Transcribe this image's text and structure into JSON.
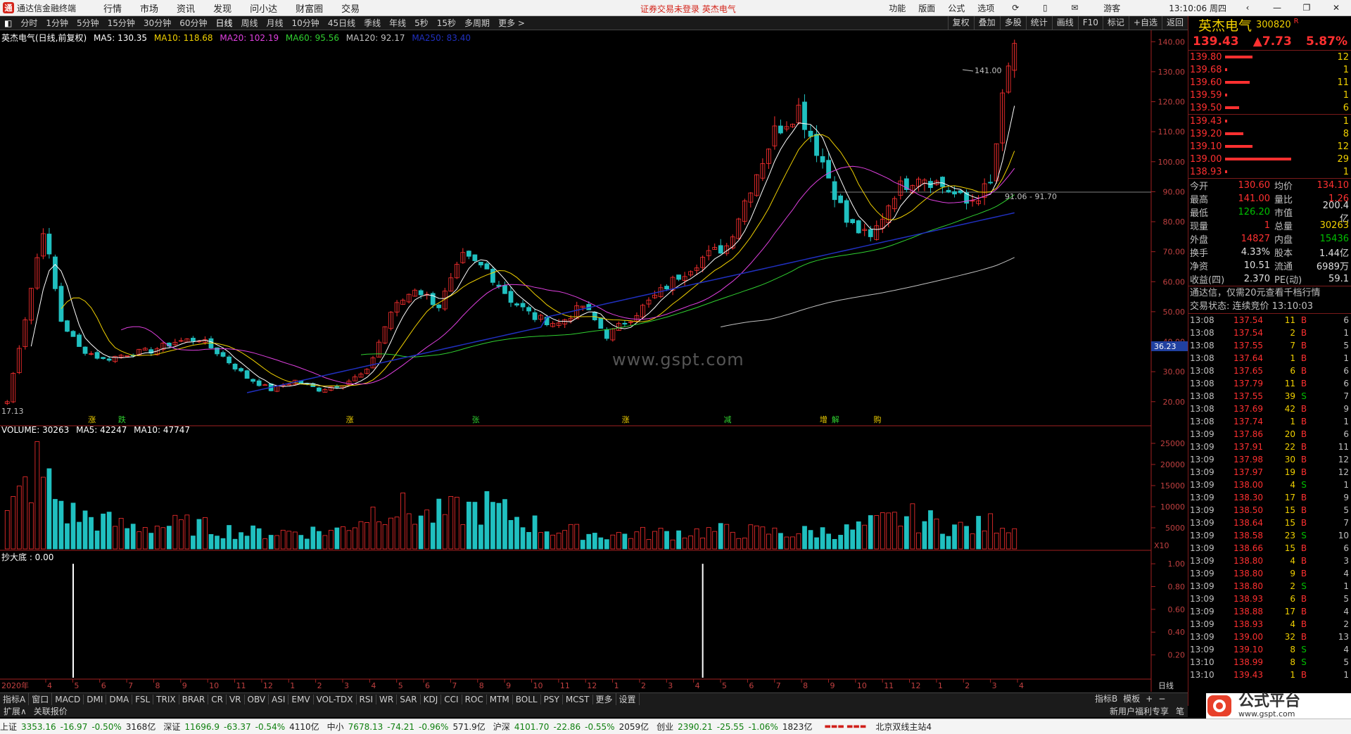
{
  "app": {
    "name": "通达信金融终端",
    "warning": "证券交易未登录  英杰电气"
  },
  "menu": [
    "行情",
    "市场",
    "资讯",
    "发现",
    "问小达",
    "财富圈",
    "交易"
  ],
  "window_right": [
    "功能",
    "版面",
    "公式",
    "选项",
    "游客",
    "13:10:06 周四"
  ],
  "toolbar": [
    "分时",
    "1分钟",
    "5分钟",
    "15分钟",
    "30分钟",
    "60分钟",
    "日线",
    "周线",
    "月线",
    "10分钟",
    "45日线",
    "季线",
    "年线",
    "5秒",
    "15秒",
    "多周期",
    "更多 >"
  ],
  "toolbar_right": [
    "复权",
    "叠加",
    "多股",
    "统计",
    "画线",
    "F10",
    "标记",
    "+自选",
    "返回"
  ],
  "main_legend": {
    "title": "英杰电气(日线,前复权)",
    "ma5": "MA5: 130.35",
    "ma10": "MA10: 118.68",
    "ma20": "MA20: 102.19",
    "ma60": "MA60: 95.56",
    "ma120": "MA120: 92.17",
    "ma250": "MA250: 83.40"
  },
  "volume_legend": {
    "title": "VOLUME: 30263",
    "ma5": "MA5: 42247",
    "ma10": "MA10: 47747"
  },
  "ind_legend": {
    "title": "抄大底 : 0.00"
  },
  "chart_data": [
    {
      "type": "candlestick",
      "title": "英杰电气(日线,前复权)",
      "ylim": [
        17.13,
        141.0
      ],
      "yticks": [
        20,
        30,
        40,
        50,
        60,
        70,
        80,
        90,
        100,
        110,
        120,
        130,
        140
      ],
      "high_label": "141.00",
      "low_label": "17.13",
      "range_label": "91.06 - 91.70",
      "cursor_price": "36.23",
      "annotations": [
        "涨",
        "跌",
        "涨",
        "张",
        "涨",
        "减",
        "增",
        "解",
        "购"
      ],
      "close_path": [
        [
          0,
          20
        ],
        [
          3,
          48
        ],
        [
          6,
          78
        ],
        [
          9,
          47
        ],
        [
          12,
          38
        ],
        [
          16,
          34
        ],
        [
          20,
          36
        ],
        [
          24,
          37
        ],
        [
          28,
          40
        ],
        [
          32,
          41
        ],
        [
          36,
          35
        ],
        [
          40,
          28
        ],
        [
          44,
          24
        ],
        [
          48,
          27
        ],
        [
          52,
          24
        ],
        [
          56,
          26
        ],
        [
          60,
          30
        ],
        [
          64,
          50
        ],
        [
          68,
          58
        ],
        [
          72,
          52
        ],
        [
          76,
          68
        ],
        [
          80,
          64
        ],
        [
          84,
          54
        ],
        [
          88,
          48
        ],
        [
          92,
          46
        ],
        [
          96,
          52
        ],
        [
          100,
          42
        ],
        [
          104,
          48
        ],
        [
          108,
          55
        ],
        [
          112,
          62
        ],
        [
          116,
          68
        ],
        [
          120,
          72
        ],
        [
          124,
          92
        ],
        [
          128,
          110
        ],
        [
          132,
          118
        ],
        [
          136,
          100
        ],
        [
          140,
          80
        ],
        [
          144,
          74
        ],
        [
          148,
          90
        ],
        [
          152,
          96
        ],
        [
          156,
          92
        ],
        [
          160,
          86
        ],
        [
          164,
          92
        ],
        [
          166,
          120
        ],
        [
          168,
          141
        ]
      ]
    },
    {
      "type": "bar",
      "title": "VOLUME",
      "ylim": [
        0,
        27000
      ],
      "yticks": [
        5000,
        10000,
        15000,
        20000,
        25000
      ],
      "unit_label": "X10",
      "profile": [
        [
          0,
          8000
        ],
        [
          5,
          20000
        ],
        [
          10,
          9000
        ],
        [
          20,
          5500
        ],
        [
          30,
          6000
        ],
        [
          40,
          4000
        ],
        [
          55,
          4500
        ],
        [
          63,
          11000
        ],
        [
          70,
          8000
        ],
        [
          80,
          10500
        ],
        [
          90,
          5000
        ],
        [
          100,
          3500
        ],
        [
          110,
          4000
        ],
        [
          120,
          4500
        ],
        [
          130,
          4000
        ],
        [
          140,
          4500
        ],
        [
          150,
          8000
        ],
        [
          160,
          5000
        ],
        [
          166,
          7000
        ],
        [
          168,
          5000
        ]
      ],
      "last_value": 30263
    },
    {
      "type": "bar",
      "title": "抄大底",
      "ylim": [
        0,
        1.05
      ],
      "yticks": [
        0.2,
        0.4,
        0.6,
        0.8,
        1.0
      ],
      "signals": [
        11,
        116
      ],
      "last_value": 0.0
    }
  ],
  "x_axis": {
    "year_label": "2020年",
    "months": [
      "4",
      "5",
      "6",
      "7",
      "8",
      "9",
      "10",
      "11",
      "12",
      "1",
      "2",
      "3",
      "4",
      "5",
      "6",
      "7",
      "8",
      "9",
      "10",
      "11",
      "12",
      "1",
      "2",
      "3",
      "4",
      "5",
      "6",
      "7",
      "8",
      "9",
      "10",
      "11",
      "12",
      "1",
      "2",
      "3",
      "4"
    ],
    "period": "日线"
  },
  "indicators": [
    "指标A",
    "窗口",
    "MACD",
    "DMI",
    "DMA",
    "FSL",
    "TRIX",
    "BRAR",
    "CR",
    "VR",
    "OBV",
    "ASI",
    "EMV",
    "VOL-TDX",
    "RSI",
    "WR",
    "SAR",
    "KDJ",
    "CCI",
    "ROC",
    "MTM",
    "BOLL",
    "PSY",
    "MCST",
    "更多",
    "设置"
  ],
  "indicators_right": [
    "指标B",
    "模板",
    "+",
    "−"
  ],
  "ext": [
    "扩展∧",
    "关联报价"
  ],
  "ext_right": [
    "新用户福利专享",
    "笔"
  ],
  "stock": {
    "name": "英杰电气",
    "code": "300820",
    "tag": "R",
    "price": "139.43",
    "change": "▲7.73",
    "pct": "5.87%"
  },
  "asks": [
    {
      "price": "139.80",
      "vol": "12",
      "bar": 0.35
    },
    {
      "price": "139.68",
      "vol": "1",
      "bar": 0.03
    },
    {
      "price": "139.60",
      "vol": "11",
      "bar": 0.32
    },
    {
      "price": "139.59",
      "vol": "1",
      "bar": 0.03
    },
    {
      "price": "139.50",
      "vol": "6",
      "bar": 0.18
    }
  ],
  "bids": [
    {
      "price": "139.43",
      "vol": "1",
      "bar": 0.03
    },
    {
      "price": "139.20",
      "vol": "8",
      "bar": 0.24
    },
    {
      "price": "139.10",
      "vol": "12",
      "bar": 0.35
    },
    {
      "price": "139.00",
      "vol": "29",
      "bar": 0.85
    },
    {
      "price": "138.93",
      "vol": "1",
      "bar": 0.03
    }
  ],
  "quote": [
    {
      "k": "今开",
      "v": "130.60",
      "vc": "red",
      "k2": "均价",
      "v2": "134.10",
      "v2c": "red"
    },
    {
      "k": "最高",
      "v": "141.00",
      "vc": "red",
      "k2": "量比",
      "v2": "1.26",
      "v2c": "red"
    },
    {
      "k": "最低",
      "v": "126.20",
      "vc": "green",
      "k2": "市值",
      "v2": "200.4亿",
      "v2c": "white"
    },
    {
      "k": "现量",
      "v": "1",
      "vc": "red",
      "k2": "总量",
      "v2": "30263",
      "v2c": "yellow"
    },
    {
      "k": "外盘",
      "v": "14827",
      "vc": "red",
      "k2": "内盘",
      "v2": "15436",
      "v2c": "green"
    },
    {
      "k": "换手",
      "v": "4.33%",
      "vc": "white",
      "k2": "股本",
      "v2": "1.44亿",
      "v2c": "white"
    },
    {
      "k": "净资",
      "v": "10.51",
      "vc": "white",
      "k2": "流通",
      "v2": "6989万",
      "v2c": "white"
    },
    {
      "k": "收益(四)",
      "v": "2.370",
      "vc": "white",
      "k2": "PE(动)",
      "v2": "59.1",
      "v2c": "white"
    }
  ],
  "notice": "通达信，仅需20元查看千档行情",
  "trade_status": "交易状态: 连续竞价 13:10:03",
  "ticks": [
    [
      "13:08",
      "137.54",
      "11",
      "B",
      "6"
    ],
    [
      "13:08",
      "137.54",
      "2",
      "B",
      "1"
    ],
    [
      "13:08",
      "137.55",
      "7",
      "B",
      "5"
    ],
    [
      "13:08",
      "137.64",
      "1",
      "B",
      "1"
    ],
    [
      "13:08",
      "137.65",
      "6",
      "B",
      "6"
    ],
    [
      "13:08",
      "137.79",
      "11",
      "B",
      "6"
    ],
    [
      "13:08",
      "137.55",
      "39",
      "S",
      "7"
    ],
    [
      "13:08",
      "137.69",
      "42",
      "B",
      "9"
    ],
    [
      "13:08",
      "137.74",
      "1",
      "B",
      "1"
    ],
    [
      "13:09",
      "137.86",
      "20",
      "B",
      "6"
    ],
    [
      "13:09",
      "137.91",
      "22",
      "B",
      "11"
    ],
    [
      "13:09",
      "137.98",
      "30",
      "B",
      "12"
    ],
    [
      "13:09",
      "137.97",
      "19",
      "B",
      "12"
    ],
    [
      "13:09",
      "138.00",
      "4",
      "S",
      "1"
    ],
    [
      "13:09",
      "138.30",
      "17",
      "B",
      "9"
    ],
    [
      "13:09",
      "138.50",
      "15",
      "B",
      "5"
    ],
    [
      "13:09",
      "138.64",
      "15",
      "B",
      "7"
    ],
    [
      "13:09",
      "138.58",
      "23",
      "S",
      "10"
    ],
    [
      "13:09",
      "138.66",
      "15",
      "B",
      "6"
    ],
    [
      "13:09",
      "138.80",
      "4",
      "B",
      "3"
    ],
    [
      "13:09",
      "138.80",
      "9",
      "B",
      "4"
    ],
    [
      "13:09",
      "138.80",
      "2",
      "S",
      "1"
    ],
    [
      "13:09",
      "138.93",
      "6",
      "B",
      "5"
    ],
    [
      "13:09",
      "138.88",
      "17",
      "B",
      "4"
    ],
    [
      "13:09",
      "138.93",
      "4",
      "B",
      "2"
    ],
    [
      "13:09",
      "139.00",
      "32",
      "B",
      "13"
    ],
    [
      "13:09",
      "139.10",
      "8",
      "S",
      "4"
    ],
    [
      "13:10",
      "138.99",
      "8",
      "S",
      "5"
    ],
    [
      "13:10",
      "139.43",
      "1",
      "B",
      "1"
    ]
  ],
  "status": [
    {
      "name": "上证",
      "val": "3353.16",
      "chg": "-16.97",
      "pct": "-0.50%",
      "amt": "3168亿"
    },
    {
      "name": "深证",
      "val": "11696.9",
      "chg": "-63.37",
      "pct": "-0.54%",
      "amt": "4110亿"
    },
    {
      "name": "中小",
      "val": "7678.13",
      "chg": "-74.21",
      "pct": "-0.96%",
      "amt": "571.9亿"
    },
    {
      "name": "沪深",
      "val": "4101.70",
      "chg": "-22.86",
      "pct": "-0.55%",
      "amt": "2059亿"
    },
    {
      "name": "创业",
      "val": "2390.21",
      "chg": "-25.55",
      "pct": "-1.06%",
      "amt": "1823亿"
    }
  ],
  "server": "北京双线主站4",
  "watermark": "www.gspt.com",
  "brand": {
    "name": "公式平台",
    "url": "www.gspt.com"
  },
  "colors": {
    "up": "#ff3030",
    "down": "#00c000",
    "ma5": "#ffffff",
    "ma10": "#f0d000",
    "ma20": "#e040e0",
    "ma60": "#30d030",
    "ma120": "#c0c0c0",
    "ma250": "#2030c0"
  }
}
